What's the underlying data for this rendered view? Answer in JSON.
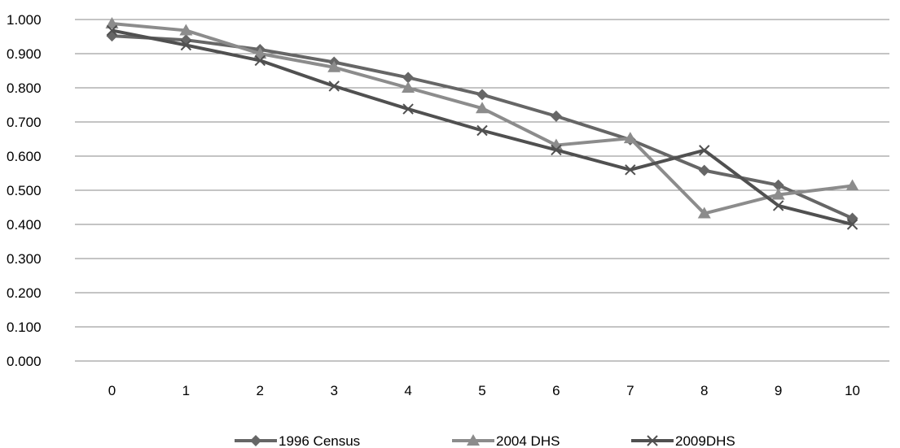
{
  "chart_data": {
    "type": "line",
    "title": "",
    "xlabel": "",
    "ylabel": "",
    "categories": [
      "0",
      "1",
      "2",
      "3",
      "4",
      "5",
      "6",
      "7",
      "8",
      "9",
      "10"
    ],
    "ylim": [
      0,
      1
    ],
    "yticks": [
      "0.000",
      "0.100",
      "0.200",
      "0.300",
      "0.400",
      "0.500",
      "0.600",
      "0.700",
      "0.800",
      "0.900",
      "1.000"
    ],
    "grid": true,
    "legend_position": "bottom",
    "series": [
      {
        "name": "1996 Census",
        "marker": "diamond",
        "color": "#666666",
        "values": [
          0.952,
          0.94,
          0.912,
          0.875,
          0.83,
          0.78,
          0.717,
          0.648,
          0.558,
          0.515,
          0.418
        ]
      },
      {
        "name": "2004 DHS",
        "marker": "triangle",
        "color": "#8c8c8c",
        "values": [
          0.988,
          0.968,
          0.9,
          0.86,
          0.8,
          0.74,
          0.632,
          0.652,
          0.432,
          0.487,
          0.513
        ]
      },
      {
        "name": "2009DHS",
        "marker": "x",
        "color": "#505050",
        "values": [
          0.968,
          0.925,
          0.88,
          0.805,
          0.738,
          0.675,
          0.618,
          0.56,
          0.617,
          0.455,
          0.4
        ]
      }
    ]
  }
}
